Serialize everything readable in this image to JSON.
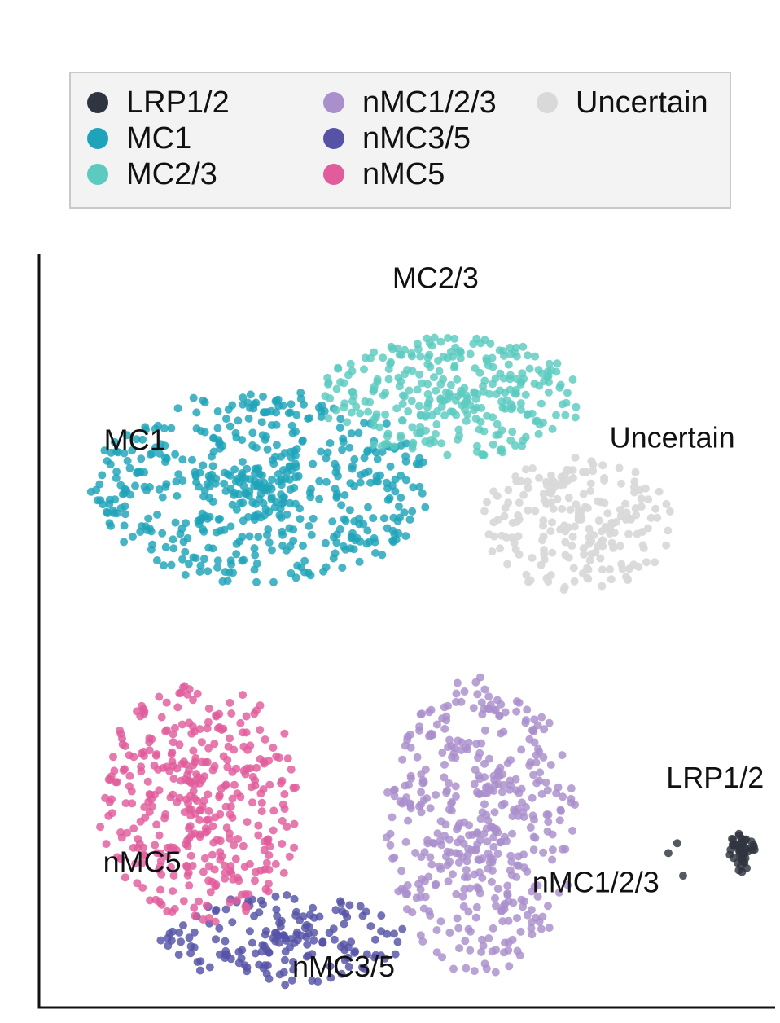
{
  "chart_data": {
    "type": "scatter",
    "title": "",
    "xlabel": "",
    "ylabel": "",
    "xlim": [
      0,
      100
    ],
    "ylim": [
      0,
      100
    ],
    "grid": false,
    "legend": {
      "placement": "top",
      "entries": [
        {
          "name": "LRP1/2",
          "color": "#2f3540"
        },
        {
          "name": "MC1",
          "color": "#1fa3ba"
        },
        {
          "name": "MC2/3",
          "color": "#5ccabf"
        },
        {
          "name": "nMC1/2/3",
          "color": "#a98fcc"
        },
        {
          "name": "nMC3/5",
          "color": "#5653a6"
        },
        {
          "name": "nMC5",
          "color": "#e05c9b"
        },
        {
          "name": "Uncertain",
          "color": "#d9d9d9"
        }
      ]
    },
    "series": [
      {
        "name": "LRP1/2",
        "color": "#2f3540",
        "seed": 11,
        "count": 45,
        "blobs": [
          {
            "cx": 95.5,
            "cy": 20.5,
            "rx": 2.2,
            "ry": 2.6,
            "n": 42
          }
        ],
        "extra": [
          [
            85.5,
            20.5
          ],
          [
            87.5,
            17.5
          ],
          [
            86.7,
            21.8
          ]
        ]
      },
      {
        "name": "MC1",
        "color": "#1fa3ba",
        "seed": 23,
        "count": 520,
        "blobs": [
          {
            "cx": 30,
            "cy": 69,
            "rx": 23,
            "ry": 13,
            "n": 520
          }
        ]
      },
      {
        "name": "MC2/3",
        "color": "#5ccabf",
        "seed": 37,
        "count": 300,
        "blobs": [
          {
            "cx": 56,
            "cy": 81,
            "rx": 18,
            "ry": 8,
            "n": 300
          }
        ]
      },
      {
        "name": "Uncertain",
        "color": "#d9d9d9",
        "seed": 41,
        "count": 210,
        "blobs": [
          {
            "cx": 73,
            "cy": 64,
            "rx": 13,
            "ry": 9,
            "n": 210
          }
        ]
      },
      {
        "name": "nMC1/2/3",
        "color": "#a98fcc",
        "seed": 53,
        "count": 430,
        "blobs": [
          {
            "cx": 60,
            "cy": 24,
            "rx": 13,
            "ry": 20,
            "n": 430
          }
        ]
      },
      {
        "name": "nMC3/5",
        "color": "#5653a6",
        "seed": 67,
        "count": 170,
        "blobs": [
          {
            "cx": 33,
            "cy": 9,
            "rx": 17,
            "ry": 6,
            "n": 170
          }
        ]
      },
      {
        "name": "nMC5",
        "color": "#e05c9b",
        "seed": 79,
        "count": 370,
        "blobs": [
          {
            "cx": 22,
            "cy": 27,
            "rx": 14,
            "ry": 16,
            "n": 370
          }
        ]
      }
    ],
    "annotations": [
      {
        "text": "MC2/3",
        "x": 48,
        "y": 95.5
      },
      {
        "text": "MC1",
        "x": 8.8,
        "y": 74
      },
      {
        "text": "Uncertain",
        "x": 77.5,
        "y": 74.3
      },
      {
        "text": "LRP1/2",
        "x": 85.2,
        "y": 29.2
      },
      {
        "text": "nMC5",
        "x": 8.7,
        "y": 18
      },
      {
        "text": "nMC1/2/3",
        "x": 67,
        "y": 15.3
      },
      {
        "text": "nMC3/5",
        "x": 34.4,
        "y": 4.1
      }
    ]
  }
}
